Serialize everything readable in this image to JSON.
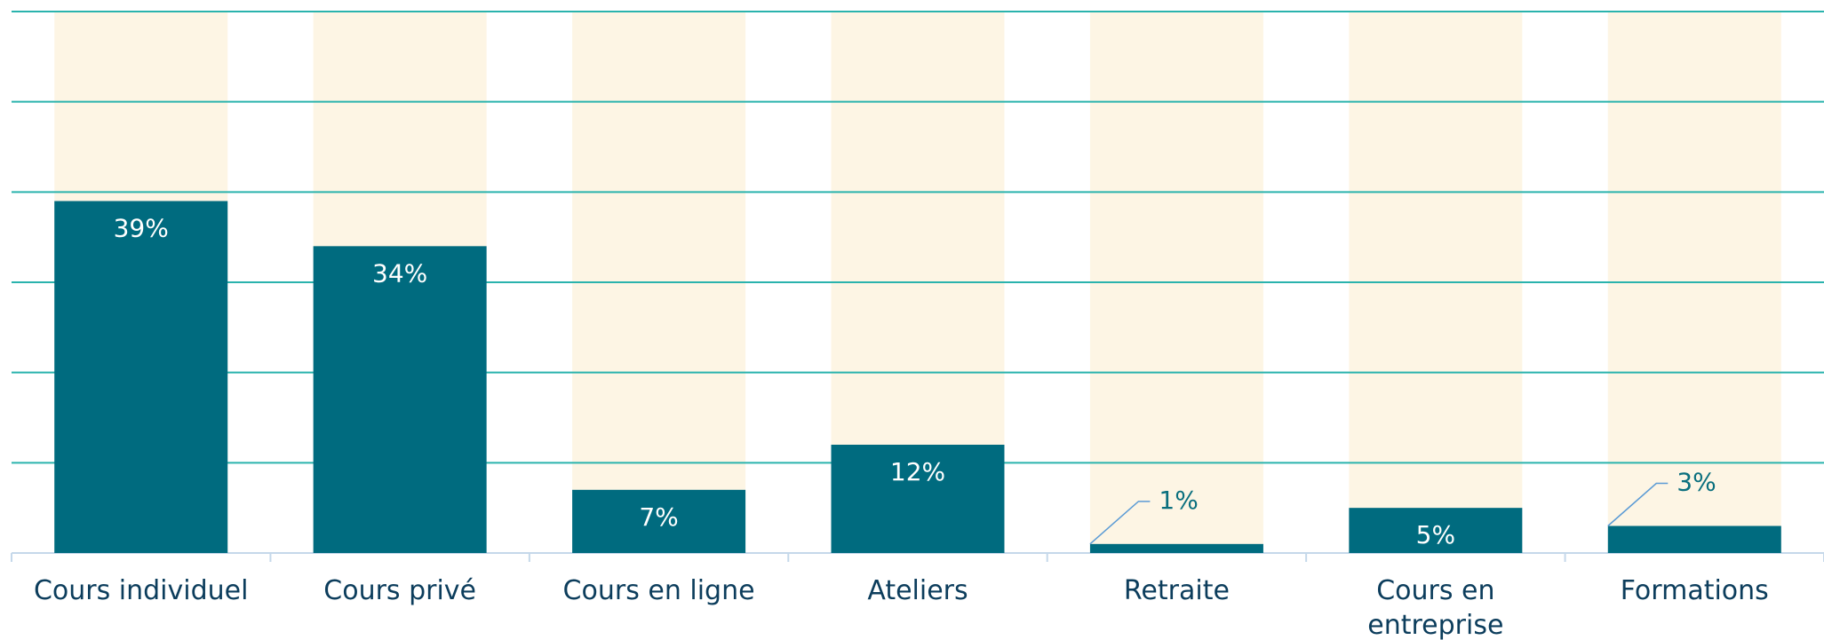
{
  "chart_data": {
    "type": "bar",
    "categories": [
      "Cours individuel",
      "Cours privé",
      "Cours en ligne",
      "Ateliers",
      "Retraite",
      "Cours en entreprise",
      "Formations"
    ],
    "values": [
      39,
      34,
      7,
      12,
      1,
      5,
      3
    ],
    "value_labels": [
      "39%",
      "34%",
      "7%",
      "12%",
      "1%",
      "5%",
      "3%"
    ],
    "color": "#006b7f",
    "background_color": "#fdf5e4",
    "ylim": [
      0,
      60
    ],
    "yticks": [
      0,
      10,
      20,
      30,
      40,
      50,
      60
    ],
    "grid": true
  }
}
